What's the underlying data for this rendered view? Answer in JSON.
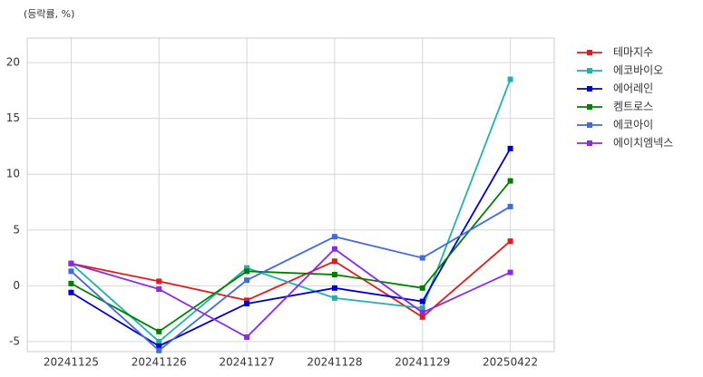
{
  "chart_data": {
    "type": "line",
    "title": "(등락률, %)",
    "categories": [
      "20241125",
      "20241126",
      "20241127",
      "20241128",
      "20241129",
      "20250422"
    ],
    "series": [
      {
        "name": "테마지수",
        "color": "#e31a1c",
        "values": [
          2.0,
          0.4,
          -1.3,
          2.2,
          -2.8,
          4.0
        ]
      },
      {
        "name": "에코바이오",
        "color": "#20b2aa",
        "values": [
          2.0,
          -5.0,
          1.6,
          -1.1,
          -2.0,
          18.5
        ]
      },
      {
        "name": "에어레인",
        "color": "#0000cd",
        "values": [
          -0.6,
          -5.4,
          -1.6,
          -0.2,
          -1.4,
          12.3
        ]
      },
      {
        "name": "켐트로스",
        "color": "#008000",
        "values": [
          0.2,
          -4.1,
          1.3,
          1.0,
          -0.2,
          9.4
        ]
      },
      {
        "name": "에코아이",
        "color": "#4169e1",
        "values": [
          1.3,
          -5.8,
          0.5,
          4.4,
          2.5,
          7.1
        ]
      },
      {
        "name": "에이치엠넥스",
        "color": "#8a2be2",
        "values": [
          2.0,
          -0.3,
          -4.6,
          3.3,
          -2.4,
          1.2
        ]
      }
    ],
    "ylim": [
      -5.9,
      22.2
    ],
    "yticks": [
      -5,
      0,
      5,
      10,
      15,
      20
    ],
    "grid": true,
    "legend": "outside-right"
  }
}
